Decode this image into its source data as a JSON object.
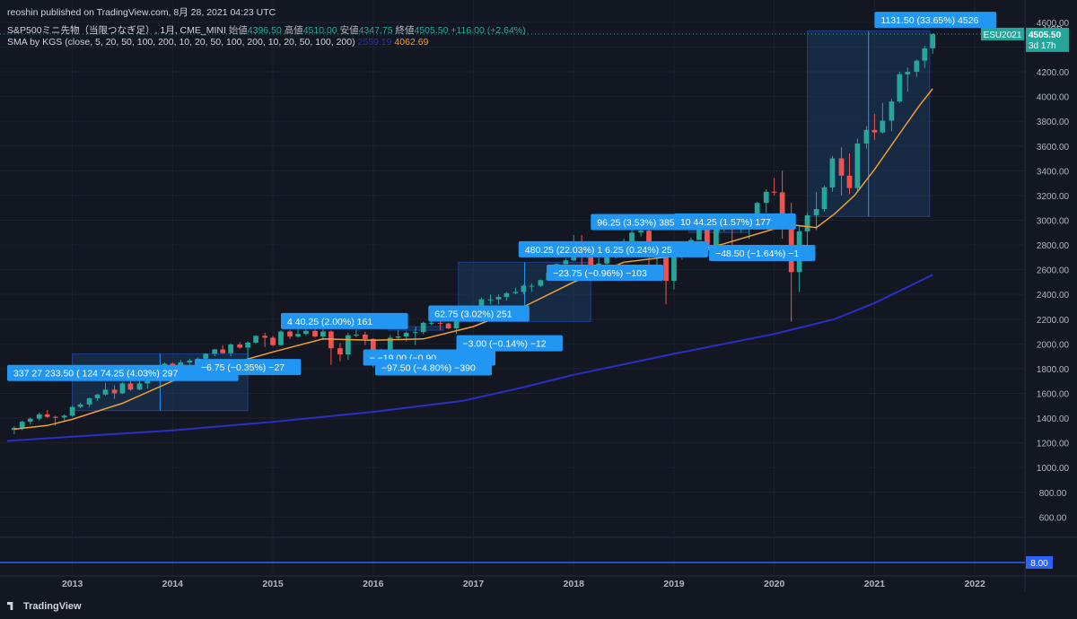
{
  "header": {
    "published": "reoshin published on TradingView.com, 8月 28, 2021 04:23 UTC",
    "symbol": "S&P500ミニ先物（当限つなぎ足）, 1月, CME_MINI",
    "open_label": "始値",
    "open": "4396.50",
    "high_label": "高値",
    "high": "4510.00",
    "low_label": "安値",
    "low": "4347.75",
    "close_label": "終値",
    "close": "4505.50",
    "change": "+116.00 (+2.64%)",
    "indicator": "SMA by KGS (close, 5, 20, 50, 100, 200, 10, 20, 50, 100, 200, 10, 20, 50, 100, 200)",
    "sma_value_1": "2559.19",
    "sma_value_2": "4062.69"
  },
  "brand": "TradingView",
  "colors": {
    "background": "#131722",
    "up": "#26a69a",
    "down": "#ef5350",
    "sma_fast": "#f0a030",
    "sma_slow": "#2a2ec4",
    "label_bg": "#2196f3",
    "range_fill": "#1c3a5e",
    "price_tag": "#26a69a"
  },
  "chart_data": {
    "type": "candlestick",
    "currency": "USD",
    "ylim": [
      450,
      4650
    ],
    "y_ticks": [
      "600.00",
      "800.00",
      "1000.00",
      "1200.00",
      "1400.00",
      "1600.00",
      "1800.00",
      "2000.00",
      "2200.00",
      "2400.00",
      "2600.00",
      "2800.00",
      "3000.00",
      "3200.00",
      "3400.00",
      "3600.00",
      "3800.00",
      "4000.00",
      "4200.00",
      "4400.00",
      "4600.00"
    ],
    "x_ticks": [
      "2013",
      "2014",
      "2015",
      "2016",
      "2017",
      "2018",
      "2019",
      "2020",
      "2021",
      "2022"
    ],
    "x_range": [
      2012.35,
      2022.5
    ],
    "last_price": {
      "symbol": "ESU2021",
      "value": "4505.50",
      "countdown": "3d 17h"
    },
    "sub_pane": {
      "value": "8.00"
    },
    "candles": [
      [
        2012.42,
        1305,
        1335,
        1270,
        1320
      ],
      [
        2012.5,
        1320,
        1380,
        1300,
        1370
      ],
      [
        2012.58,
        1370,
        1405,
        1350,
        1395
      ],
      [
        2012.67,
        1395,
        1445,
        1380,
        1430
      ],
      [
        2012.75,
        1430,
        1465,
        1400,
        1410
      ],
      [
        2012.83,
        1410,
        1420,
        1340,
        1405
      ],
      [
        2012.92,
        1405,
        1430,
        1380,
        1420
      ],
      [
        2013.0,
        1420,
        1500,
        1410,
        1490
      ],
      [
        2013.08,
        1490,
        1525,
        1480,
        1510
      ],
      [
        2013.17,
        1510,
        1565,
        1490,
        1560
      ],
      [
        2013.25,
        1560,
        1595,
        1540,
        1590
      ],
      [
        2013.33,
        1590,
        1685,
        1580,
        1630
      ],
      [
        2013.42,
        1630,
        1665,
        1555,
        1600
      ],
      [
        2013.5,
        1600,
        1690,
        1595,
        1680
      ],
      [
        2013.58,
        1680,
        1710,
        1620,
        1630
      ],
      [
        2013.67,
        1630,
        1730,
        1625,
        1680
      ],
      [
        2013.75,
        1680,
        1760,
        1640,
        1750
      ],
      [
        2013.83,
        1750,
        1810,
        1740,
        1800
      ],
      [
        2013.92,
        1800,
        1850,
        1760,
        1840
      ],
      [
        2014.0,
        1840,
        1850,
        1740,
        1780
      ],
      [
        2014.08,
        1780,
        1870,
        1770,
        1850
      ],
      [
        2014.17,
        1850,
        1880,
        1830,
        1865
      ],
      [
        2014.25,
        1865,
        1890,
        1810,
        1880
      ],
      [
        2014.33,
        1880,
        1925,
        1860,
        1920
      ],
      [
        2014.42,
        1920,
        1960,
        1900,
        1955
      ],
      [
        2014.5,
        1955,
        1990,
        1920,
        1925
      ],
      [
        2014.58,
        1925,
        2005,
        1900,
        1995
      ],
      [
        2014.67,
        1995,
        2015,
        1960,
        1970
      ],
      [
        2014.75,
        1970,
        2020,
        1820,
        2010
      ],
      [
        2014.83,
        2010,
        2070,
        2000,
        2065
      ],
      [
        2014.92,
        2065,
        2090,
        1975,
        2050
      ],
      [
        2015.0,
        2050,
        2065,
        1980,
        1990
      ],
      [
        2015.08,
        1990,
        2110,
        1985,
        2100
      ],
      [
        2015.17,
        2100,
        2115,
        2040,
        2060
      ],
      [
        2015.25,
        2060,
        2120,
        2050,
        2080
      ],
      [
        2015.33,
        2080,
        2130,
        2070,
        2105
      ],
      [
        2015.42,
        2105,
        2120,
        2050,
        2060
      ],
      [
        2015.5,
        2060,
        2130,
        2030,
        2100
      ],
      [
        2015.58,
        2100,
        2110,
        1830,
        1965
      ],
      [
        2015.67,
        1965,
        2005,
        1860,
        1915
      ],
      [
        2015.75,
        1915,
        2090,
        1870,
        2070
      ],
      [
        2015.83,
        2070,
        2115,
        2055,
        2075
      ],
      [
        2015.92,
        2075,
        2100,
        1990,
        2040
      ],
      [
        2016.0,
        2040,
        2045,
        1810,
        1930
      ],
      [
        2016.08,
        1930,
        1960,
        1800,
        1925
      ],
      [
        2016.17,
        1925,
        2070,
        1920,
        2050
      ],
      [
        2016.25,
        2050,
        2110,
        2030,
        2060
      ],
      [
        2016.33,
        2060,
        2100,
        2020,
        2090
      ],
      [
        2016.42,
        2090,
        2120,
        1990,
        2095
      ],
      [
        2016.5,
        2095,
        2180,
        2080,
        2170
      ],
      [
        2016.58,
        2170,
        2190,
        2150,
        2170
      ],
      [
        2016.67,
        2170,
        2190,
        2110,
        2165
      ],
      [
        2016.75,
        2165,
        2170,
        2120,
        2125
      ],
      [
        2016.83,
        2125,
        2215,
        2080,
        2195
      ],
      [
        2016.92,
        2195,
        2280,
        2180,
        2235
      ],
      [
        2017.0,
        2235,
        2300,
        2230,
        2275
      ],
      [
        2017.08,
        2275,
        2375,
        2260,
        2360
      ],
      [
        2017.17,
        2360,
        2400,
        2320,
        2360
      ],
      [
        2017.25,
        2360,
        2400,
        2320,
        2380
      ],
      [
        2017.33,
        2380,
        2420,
        2350,
        2410
      ],
      [
        2017.42,
        2410,
        2455,
        2400,
        2420
      ],
      [
        2017.5,
        2420,
        2480,
        2400,
        2470
      ],
      [
        2017.58,
        2470,
        2490,
        2420,
        2470
      ],
      [
        2017.67,
        2470,
        2520,
        2460,
        2515
      ],
      [
        2017.75,
        2515,
        2580,
        2510,
        2575
      ],
      [
        2017.83,
        2575,
        2650,
        2560,
        2645
      ],
      [
        2017.92,
        2645,
        2690,
        2600,
        2675
      ],
      [
        2018.0,
        2675,
        2880,
        2670,
        2820
      ],
      [
        2018.08,
        2820,
        2880,
        2530,
        2710
      ],
      [
        2018.17,
        2710,
        2800,
        2580,
        2640
      ],
      [
        2018.25,
        2640,
        2720,
        2590,
        2650
      ],
      [
        2018.33,
        2650,
        2740,
        2600,
        2705
      ],
      [
        2018.42,
        2705,
        2790,
        2690,
        2720
      ],
      [
        2018.5,
        2720,
        2850,
        2700,
        2815
      ],
      [
        2018.58,
        2815,
        2920,
        2800,
        2900
      ],
      [
        2018.67,
        2900,
        2945,
        2870,
        2915
      ],
      [
        2018.75,
        2915,
        2940,
        2600,
        2710
      ],
      [
        2018.83,
        2710,
        2820,
        2630,
        2760
      ],
      [
        2018.92,
        2760,
        2800,
        2320,
        2510
      ],
      [
        2019.0,
        2510,
        2710,
        2440,
        2705
      ],
      [
        2019.08,
        2705,
        2820,
        2680,
        2785
      ],
      [
        2019.17,
        2785,
        2860,
        2720,
        2840
      ],
      [
        2019.25,
        2840,
        2960,
        2840,
        2945
      ],
      [
        2019.33,
        2945,
        2960,
        2720,
        2755
      ],
      [
        2019.42,
        2755,
        2970,
        2730,
        2945
      ],
      [
        2019.5,
        2945,
        3030,
        2910,
        2985
      ],
      [
        2019.58,
        2985,
        3000,
        2780,
        2925
      ],
      [
        2019.67,
        2925,
        3030,
        2900,
        2980
      ],
      [
        2019.75,
        2980,
        3000,
        2850,
        2980
      ],
      [
        2019.83,
        2980,
        3150,
        2940,
        3140
      ],
      [
        2019.92,
        3140,
        3250,
        3060,
        3230
      ],
      [
        2020.0,
        3230,
        3340,
        3200,
        3225
      ],
      [
        2020.08,
        3225,
        3400,
        2850,
        2955
      ],
      [
        2020.17,
        2955,
        3140,
        2180,
        2580
      ],
      [
        2020.25,
        2580,
        2950,
        2420,
        2910
      ],
      [
        2020.33,
        2910,
        3060,
        2780,
        3040
      ],
      [
        2020.42,
        3040,
        3230,
        2920,
        3090
      ],
      [
        2020.5,
        3090,
        3280,
        3070,
        3265
      ],
      [
        2020.58,
        3265,
        3520,
        3230,
        3500
      ],
      [
        2020.67,
        3500,
        3590,
        3200,
        3360
      ],
      [
        2020.75,
        3360,
        3540,
        3210,
        3260
      ],
      [
        2020.83,
        3260,
        3660,
        3230,
        3620
      ],
      [
        2020.92,
        3620,
        3760,
        3580,
        3730
      ],
      [
        2021.0,
        3730,
        3860,
        3650,
        3710
      ],
      [
        2021.08,
        3710,
        3950,
        3700,
        3805
      ],
      [
        2021.17,
        3805,
        3980,
        3720,
        3960
      ],
      [
        2021.25,
        3960,
        4200,
        3950,
        4180
      ],
      [
        2021.33,
        4180,
        4235,
        4040,
        4200
      ],
      [
        2021.42,
        4200,
        4300,
        4160,
        4290
      ],
      [
        2021.5,
        4290,
        4410,
        4230,
        4390
      ],
      [
        2021.58,
        4390,
        4510,
        4345,
        4505
      ]
    ],
    "sma_fast_points": [
      [
        2012.42,
        1310
      ],
      [
        2012.75,
        1340
      ],
      [
        2013.0,
        1390
      ],
      [
        2013.5,
        1520
      ],
      [
        2014.0,
        1700
      ],
      [
        2014.5,
        1820
      ],
      [
        2015.0,
        1935
      ],
      [
        2015.5,
        2040
      ],
      [
        2016.0,
        2030
      ],
      [
        2016.5,
        2040
      ],
      [
        2017.0,
        2140
      ],
      [
        2017.5,
        2300
      ],
      [
        2018.0,
        2500
      ],
      [
        2018.5,
        2660
      ],
      [
        2019.0,
        2710
      ],
      [
        2019.5,
        2810
      ],
      [
        2020.0,
        2930
      ],
      [
        2020.2,
        2960
      ],
      [
        2020.42,
        2940
      ],
      [
        2020.6,
        3050
      ],
      [
        2020.8,
        3200
      ],
      [
        2021.0,
        3410
      ],
      [
        2021.25,
        3700
      ],
      [
        2021.45,
        3930
      ],
      [
        2021.58,
        4063
      ]
    ],
    "sma_slow_points": [
      [
        2012.35,
        1215
      ],
      [
        2013.0,
        1250
      ],
      [
        2014.0,
        1300
      ],
      [
        2015.0,
        1370
      ],
      [
        2016.0,
        1450
      ],
      [
        2016.9,
        1540
      ],
      [
        2017.5,
        1650
      ],
      [
        2018.0,
        1750
      ],
      [
        2019.0,
        1920
      ],
      [
        2020.0,
        2080
      ],
      [
        2020.6,
        2200
      ],
      [
        2021.0,
        2330
      ],
      [
        2021.58,
        2559
      ]
    ],
    "range_boxes": [
      {
        "x0": 2013.0,
        "x1": 2014.75,
        "y0": 1460,
        "y1": 1920
      },
      {
        "x0": 2016.85,
        "x1": 2018.17,
        "y0": 2180,
        "y1": 2660
      },
      {
        "x0": 2020.33,
        "x1": 2021.55,
        "y0": 3030,
        "y1": 4530
      },
      {
        "x0": 2016.15,
        "x1": 2016.7,
        "y0": 2110,
        "y1": 2140
      },
      {
        "x0": 2019.15,
        "x1": 2019.75,
        "y0": 2900,
        "y1": 2940
      }
    ],
    "annotations": [
      {
        "text": "337  27   233.50 (  124  74.25 (4.03%) 297",
        "x": 2012.35,
        "y": 1765
      },
      {
        "text": "−6.75 (−0.35%) −27",
        "x": 2014.22,
        "y": 1813
      },
      {
        "text": "4    40.25 (2.00%) 161",
        "x": 2015.08,
        "y": 2185
      },
      {
        "text": "−     −19.00 (−0.90    ",
        "x": 2015.9,
        "y": 1890
      },
      {
        "text": "−97.50 (−4.80%) −390",
        "x": 2016.02,
        "y": 1810
      },
      {
        "text": "62.75 (3.02%) 251",
        "x": 2016.55,
        "y": 2245
      },
      {
        "text": "−3.00 (−0.14%) −12",
        "x": 2016.83,
        "y": 2005
      },
      {
        "text": "480.25 (22.03%) 1  6.25 (0.24%) 25",
        "x": 2017.45,
        "y": 2765
      },
      {
        "text": "−23.75 (−0.96%) −103",
        "x": 2017.73,
        "y": 2575
      },
      {
        "text": "96.25 (3.53%) 385  40",
        "x": 2018.17,
        "y": 2985
      },
      {
        "text": "10  44.25 (1.57%) 177",
        "x": 2019.0,
        "y": 2990
      },
      {
        "text": "−48.50 (−1.64%) −1",
        "x": 2019.35,
        "y": 2735
      },
      {
        "text": "1131.50 (33.65%) 4526",
        "x": 2021.0,
        "y": 4620
      }
    ]
  }
}
